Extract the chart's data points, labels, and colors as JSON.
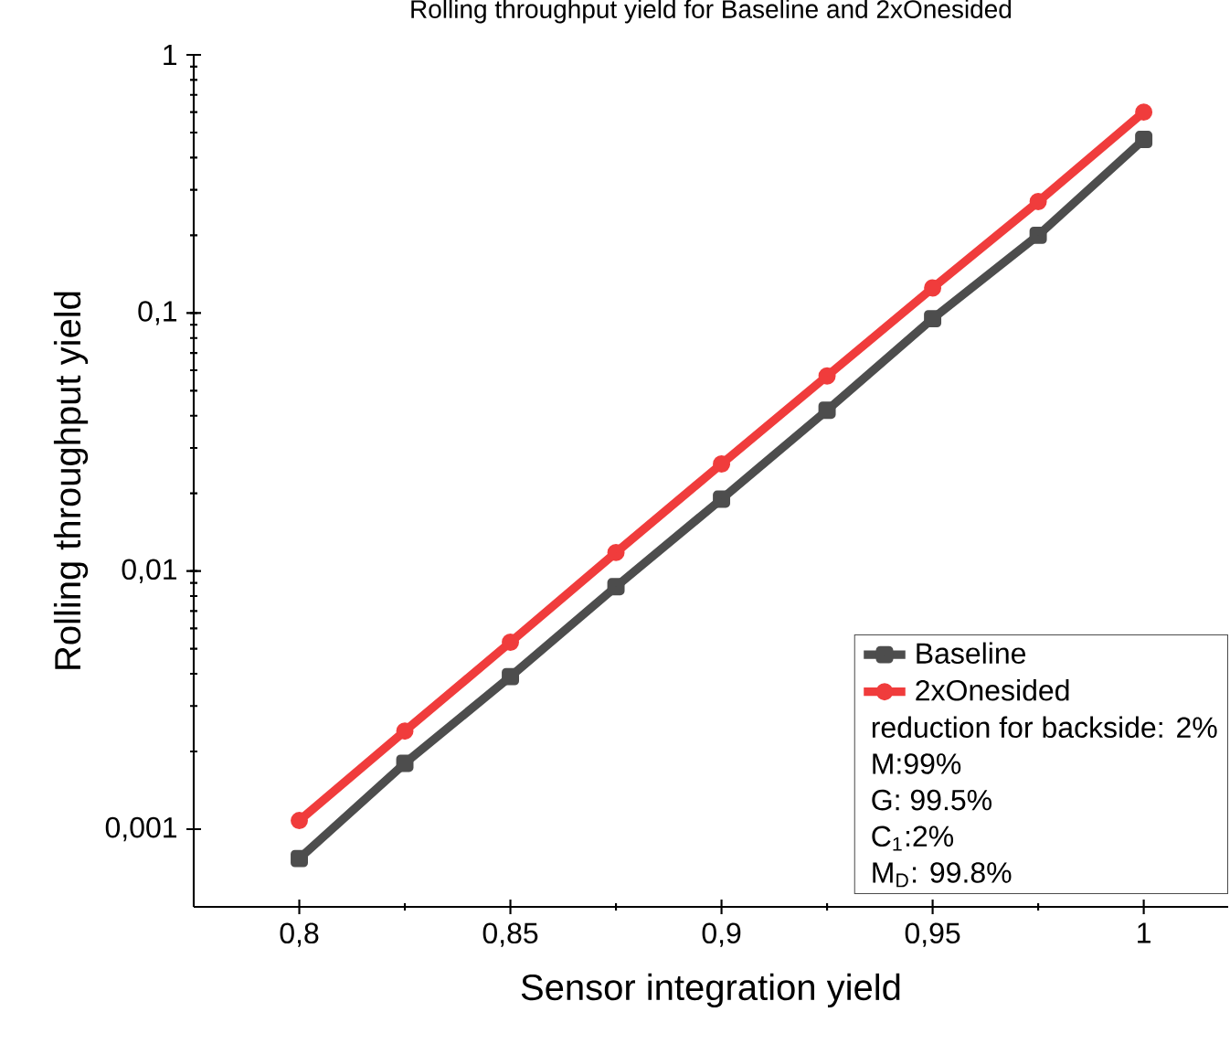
{
  "chart_data": {
    "type": "line",
    "title": "Rolling throughput yield for Baseline and 2xOnesided",
    "xlabel": "Sensor integration yield",
    "ylabel": "Rolling throughput yield",
    "x": [
      0.8,
      0.825,
      0.85,
      0.875,
      0.9,
      0.925,
      0.95,
      0.975,
      1.0
    ],
    "series": [
      {
        "name": "Baseline",
        "color": "#4d4d4d",
        "marker": "square",
        "values": [
          0.00077,
          0.0018,
          0.0039,
          0.0087,
          0.019,
          0.042,
          0.095,
          0.2,
          0.47
        ]
      },
      {
        "name": "2xOnesided",
        "color": "#f03c3c",
        "marker": "circle",
        "values": [
          0.00108,
          0.0024,
          0.0053,
          0.0118,
          0.026,
          0.057,
          0.125,
          0.27,
          0.6
        ]
      }
    ],
    "log": "y",
    "xlim": [
      0.775,
      1.02
    ],
    "ylim": [
      0.0005,
      1
    ],
    "xticks": [
      {
        "value": 0.8,
        "label": "0,8"
      },
      {
        "value": 0.85,
        "label": "0,85"
      },
      {
        "value": 0.9,
        "label": "0,9"
      },
      {
        "value": 0.95,
        "label": "0,95"
      },
      {
        "value": 1,
        "label": "1"
      }
    ],
    "yticks": [
      {
        "value": 0.001,
        "label": "0,001"
      },
      {
        "value": 0.01,
        "label": "0,01"
      },
      {
        "value": 0.1,
        "label": "0,1"
      },
      {
        "value": 1,
        "label": "1"
      }
    ],
    "grid": false,
    "legend": "bottom right",
    "annotations": [
      "reduction for backside: 2%",
      "M:99%",
      "G: 99.5%",
      "C$_{1}$:2%",
      "M$_{D}$: 99.8%"
    ]
  }
}
